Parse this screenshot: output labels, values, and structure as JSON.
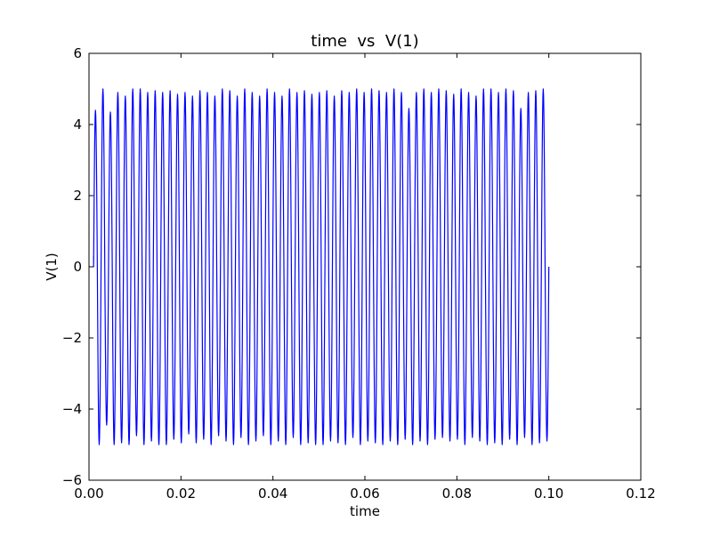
{
  "chart_data": {
    "type": "line",
    "title": "time  vs  V(1)",
    "xlabel": "time",
    "ylabel": "V(1)",
    "xlim": [
      0.0,
      0.12
    ],
    "ylim": [
      -6,
      6
    ],
    "xticks": [
      0.0,
      0.02,
      0.04,
      0.06,
      0.08,
      0.1,
      0.12
    ],
    "xtick_labels": [
      "0.00",
      "0.02",
      "0.04",
      "0.06",
      "0.08",
      "0.10",
      "0.12"
    ],
    "yticks": [
      -6,
      -4,
      -2,
      0,
      2,
      4,
      6
    ],
    "ytick_labels": [
      "−6",
      "−4",
      "−2",
      "0",
      "2",
      "4",
      "6"
    ],
    "grid": false,
    "series_color": "#0000ff",
    "series": [
      {
        "x_start": 0.001,
        "x_end": 0.1,
        "cycles": 61,
        "peak_values": [
          4.4,
          5.0,
          4.35,
          4.9,
          4.8,
          5.0,
          5.0,
          4.9,
          4.95,
          4.9,
          4.95,
          4.85,
          4.9,
          4.8,
          4.95,
          4.9,
          4.8,
          5.0,
          4.95,
          4.8,
          5.0,
          4.9,
          4.8,
          5.0,
          4.9,
          4.8,
          5.0,
          4.9,
          4.95,
          4.85,
          4.9,
          4.95,
          4.8,
          4.95,
          4.9,
          5.0,
          4.9,
          5.0,
          4.95,
          4.9,
          5.0,
          4.9,
          4.45,
          4.9,
          5.0,
          4.9,
          5.0,
          4.95,
          4.85,
          5.0,
          4.9,
          4.8,
          5.0,
          5.0,
          4.9,
          5.0,
          4.95,
          4.45,
          4.9,
          4.95,
          5.0
        ],
        "trough_values": [
          -5.0,
          -4.45,
          -5.0,
          -4.95,
          -5.0,
          -4.75,
          -5.0,
          -4.9,
          -5.0,
          -5.0,
          -4.85,
          -4.95,
          -4.7,
          -4.95,
          -4.85,
          -5.0,
          -4.75,
          -4.9,
          -5.0,
          -4.8,
          -5.0,
          -4.9,
          -4.75,
          -5.0,
          -4.9,
          -5.0,
          -4.8,
          -5.0,
          -4.95,
          -5.0,
          -5.0,
          -4.9,
          -4.95,
          -5.0,
          -4.8,
          -5.0,
          -4.9,
          -4.95,
          -5.0,
          -4.9,
          -5.0,
          -4.85,
          -5.0,
          -4.9,
          -5.0,
          -4.85,
          -4.8,
          -4.9,
          -4.85,
          -5.0,
          -4.8,
          -4.9,
          -5.0,
          -4.95,
          -5.0,
          -4.85,
          -5.0,
          -4.8,
          -5.0,
          -4.95,
          -4.9
        ],
        "start_value": 0.3,
        "end_value": 0.0
      }
    ]
  }
}
